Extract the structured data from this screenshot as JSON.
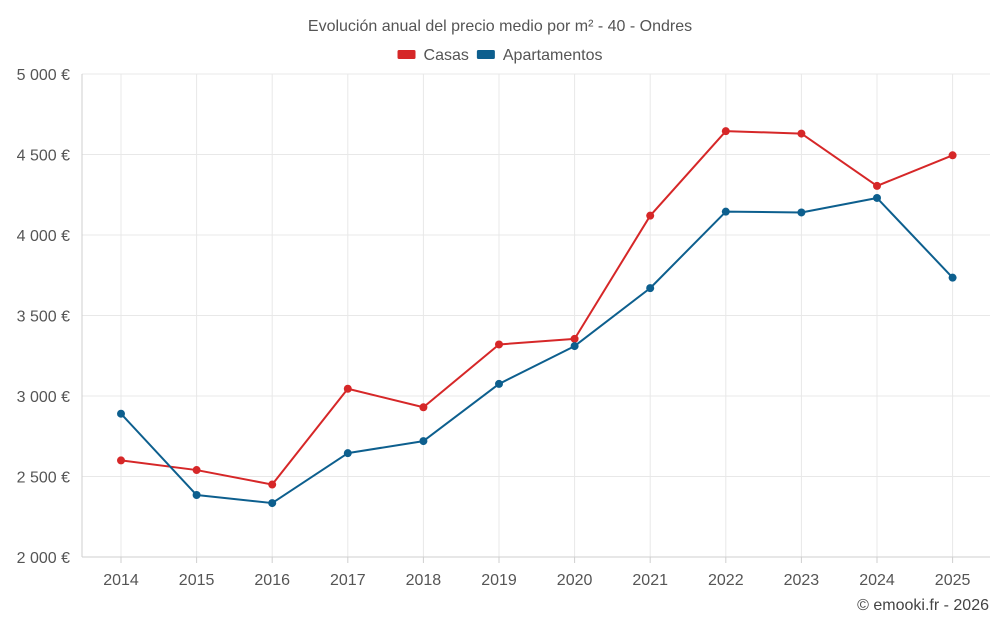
{
  "chart_data": {
    "type": "line",
    "title": "Evolución anual del precio medio por m² - 40 - Ondres",
    "xlabel": "",
    "ylabel": "",
    "categories": [
      "2014",
      "2015",
      "2016",
      "2017",
      "2018",
      "2019",
      "2020",
      "2021",
      "2022",
      "2023",
      "2024",
      "2025"
    ],
    "ylim": [
      2000,
      5000
    ],
    "yticks": [
      2000,
      2500,
      3000,
      3500,
      4000,
      4500,
      5000
    ],
    "ytick_labels": [
      "2 000 €",
      "2 500 €",
      "3 000 €",
      "3 500 €",
      "4 000 €",
      "4 500 €",
      "5 000 €"
    ],
    "grid": true,
    "legend_position": "top-center",
    "series": [
      {
        "name": "Casas",
        "color": "#d62728",
        "values": [
          2600,
          2540,
          2450,
          3045,
          2930,
          3320,
          3355,
          4120,
          4645,
          4630,
          4305,
          4495
        ]
      },
      {
        "name": "Apartamentos",
        "color": "#0d5f8e",
        "values": [
          2890,
          2385,
          2335,
          2645,
          2720,
          3075,
          3310,
          3670,
          4145,
          4140,
          4230,
          3735
        ]
      }
    ],
    "credit": "© emooki.fr - 2026"
  }
}
